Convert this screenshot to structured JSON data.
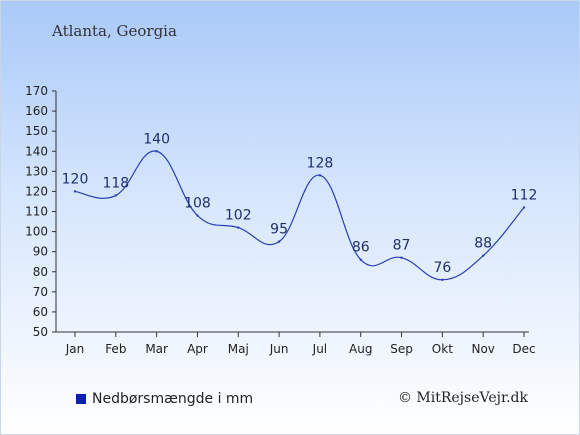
{
  "header": {
    "title": "Atlanta, Georgia"
  },
  "legend": {
    "label": "Nedbørsmængde i mm",
    "color": "#0a22a8"
  },
  "footer": {
    "copyright": "© MitRejseVejr.dk"
  },
  "colors": {
    "line": "#2a3fb0",
    "axis": "#333333"
  },
  "chart_data": {
    "type": "line",
    "title": "Atlanta, Georgia",
    "xlabel": "",
    "ylabel": "",
    "categories": [
      "Jan",
      "Feb",
      "Mar",
      "Apr",
      "Maj",
      "Jun",
      "Jul",
      "Aug",
      "Sep",
      "Okt",
      "Nov",
      "Dec"
    ],
    "series": [
      {
        "name": "Nedbørsmængde i mm",
        "values": [
          120,
          118,
          140,
          108,
          102,
          95,
          128,
          86,
          87,
          76,
          88,
          112
        ]
      }
    ],
    "ylim": [
      50,
      170
    ],
    "yticks": [
      50,
      60,
      70,
      80,
      90,
      100,
      110,
      120,
      130,
      140,
      150,
      160,
      170
    ],
    "grid": false,
    "legend_position": "bottom-left"
  }
}
